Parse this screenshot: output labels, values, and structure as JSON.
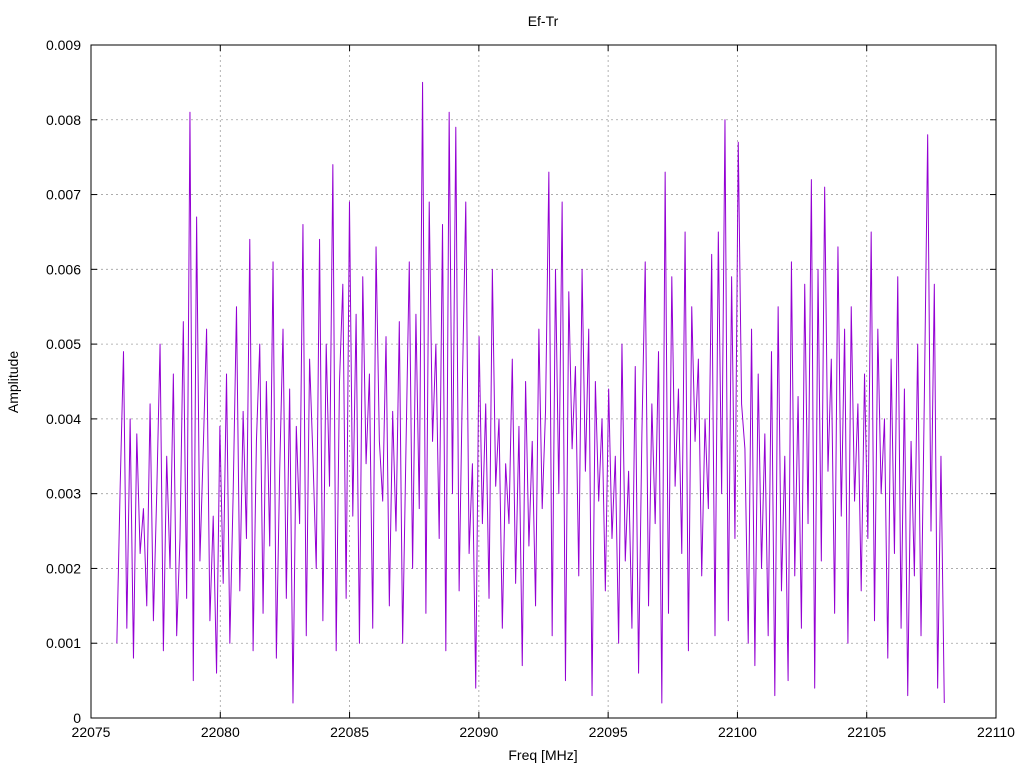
{
  "chart_data": {
    "type": "line",
    "title": "Ef-Tr",
    "xlabel": "Freq [MHz]",
    "ylabel": "Amplitude",
    "xlim": [
      22075,
      22110
    ],
    "ylim": [
      0,
      0.009
    ],
    "x_ticks": [
      22075,
      22080,
      22085,
      22090,
      22095,
      22100,
      22105,
      22110
    ],
    "x_tick_labels": [
      "22075",
      "22080",
      "22085",
      "22090",
      "22095",
      "22100",
      "22105",
      "22110"
    ],
    "y_ticks": [
      0,
      0.001,
      0.002,
      0.003,
      0.004,
      0.005,
      0.006,
      0.007,
      0.008,
      0.009
    ],
    "y_tick_labels": [
      "0",
      "0.001",
      "0.002",
      "0.003",
      "0.004",
      "0.005",
      "0.006",
      "0.007",
      "0.008",
      "0.009"
    ],
    "grid": true,
    "legend": "none",
    "series": [
      {
        "color": "#9400d3",
        "x_range": [
          22076.0,
          22108.0
        ],
        "values": [
          0.001,
          0.0031,
          0.0049,
          0.0012,
          0.004,
          0.0008,
          0.0038,
          0.0022,
          0.0028,
          0.0015,
          0.0042,
          0.0013,
          0.003,
          0.005,
          0.0009,
          0.0035,
          0.002,
          0.0046,
          0.0011,
          0.0024,
          0.0053,
          0.0016,
          0.0081,
          0.0005,
          0.0067,
          0.0021,
          0.0036,
          0.0052,
          0.0013,
          0.0027,
          0.0006,
          0.0039,
          0.0018,
          0.0046,
          0.001,
          0.003,
          0.0055,
          0.0017,
          0.0041,
          0.0024,
          0.0064,
          0.0009,
          0.0037,
          0.005,
          0.0014,
          0.0045,
          0.0023,
          0.0061,
          0.0008,
          0.0033,
          0.0052,
          0.0016,
          0.0044,
          0.0002,
          0.0039,
          0.0026,
          0.0066,
          0.0011,
          0.0048,
          0.0035,
          0.002,
          0.0064,
          0.0013,
          0.005,
          0.0031,
          0.0074,
          0.0009,
          0.0045,
          0.0058,
          0.0016,
          0.0069,
          0.0027,
          0.0054,
          0.001,
          0.0059,
          0.0034,
          0.0046,
          0.0012,
          0.0063,
          0.0037,
          0.0029,
          0.0051,
          0.0015,
          0.0041,
          0.0025,
          0.0053,
          0.001,
          0.0036,
          0.0061,
          0.002,
          0.0054,
          0.0028,
          0.0085,
          0.0014,
          0.0069,
          0.0037,
          0.005,
          0.0024,
          0.0066,
          0.0009,
          0.0081,
          0.003,
          0.0079,
          0.0017,
          0.0045,
          0.0069,
          0.0022,
          0.0034,
          0.0004,
          0.0051,
          0.0026,
          0.0042,
          0.0016,
          0.006,
          0.0031,
          0.004,
          0.0012,
          0.0034,
          0.0026,
          0.0048,
          0.0018,
          0.0039,
          0.0007,
          0.0045,
          0.0023,
          0.0037,
          0.0015,
          0.0052,
          0.0028,
          0.0041,
          0.0073,
          0.0011,
          0.006,
          0.003,
          0.0069,
          0.0005,
          0.0057,
          0.0036,
          0.0047,
          0.0019,
          0.006,
          0.0033,
          0.0052,
          0.0003,
          0.0045,
          0.0029,
          0.004,
          0.0017,
          0.0044,
          0.0024,
          0.0035,
          0.001,
          0.005,
          0.0021,
          0.0033,
          0.0012,
          0.0047,
          0.0006,
          0.0038,
          0.0061,
          0.0015,
          0.0042,
          0.0026,
          0.0049,
          0.0002,
          0.0073,
          0.0014,
          0.0059,
          0.0031,
          0.0044,
          0.0022,
          0.0065,
          0.0009,
          0.0055,
          0.0037,
          0.0048,
          0.0019,
          0.004,
          0.0028,
          0.0062,
          0.0011,
          0.0065,
          0.003,
          0.008,
          0.0013,
          0.0059,
          0.0024,
          0.0077,
          0.0042,
          0.0036,
          0.001,
          0.0052,
          0.0007,
          0.0046,
          0.002,
          0.0038,
          0.0011,
          0.0049,
          0.0003,
          0.0055,
          0.0017,
          0.0035,
          0.0005,
          0.0061,
          0.0019,
          0.0043,
          0.0012,
          0.0058,
          0.0026,
          0.0072,
          0.0004,
          0.006,
          0.0021,
          0.0071,
          0.0033,
          0.0048,
          0.0014,
          0.0063,
          0.0027,
          0.0052,
          0.001,
          0.0055,
          0.0029,
          0.0042,
          0.0017,
          0.0046,
          0.0024,
          0.0065,
          0.0013,
          0.0052,
          0.003,
          0.004,
          0.0008,
          0.0048,
          0.0022,
          0.0059,
          0.0012,
          0.0044,
          0.0003,
          0.0037,
          0.0019,
          0.005,
          0.0011,
          0.0043,
          0.0078,
          0.0025,
          0.0058,
          0.0004,
          0.0035,
          0.0002
        ]
      }
    ]
  }
}
